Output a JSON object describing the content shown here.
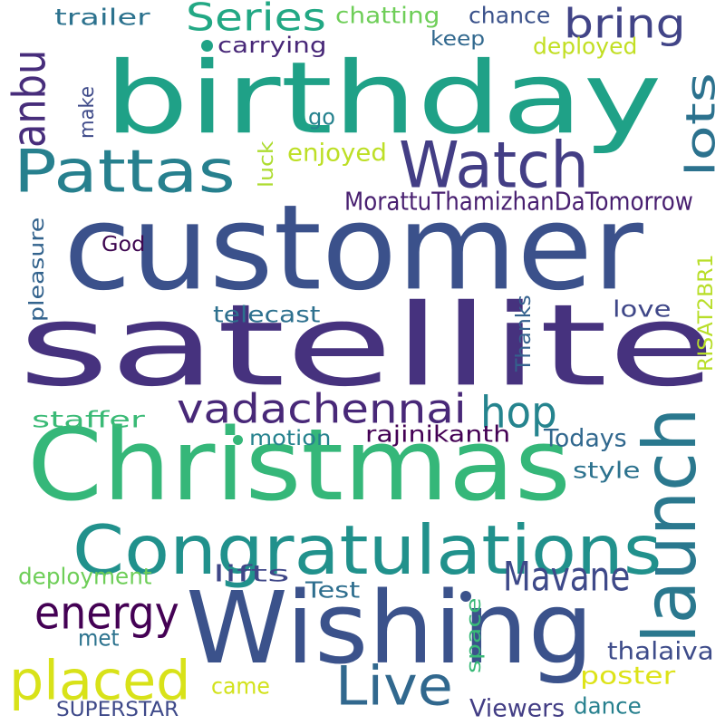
{
  "wordcloud": {
    "words": [
      {
        "text": "customer",
        "color": "#3b518b"
      },
      {
        "text": "birthday",
        "color": "#1fa187"
      },
      {
        "text": "satellite",
        "color": "#46327e"
      },
      {
        "text": "Christmas",
        "color": "#35b779"
      },
      {
        "text": "Wishing",
        "color": "#3b528b"
      },
      {
        "text": "Congratulations",
        "color": "#21918c"
      },
      {
        "text": "Pattas",
        "color": "#27808e"
      },
      {
        "text": "Watch",
        "color": "#433e85"
      },
      {
        "text": "launch",
        "color": "#2a788e"
      },
      {
        "text": "placed",
        "color": "#d8e219"
      },
      {
        "text": "Live",
        "color": "#31688e"
      },
      {
        "text": "Mavane",
        "color": "#3e4989"
      },
      {
        "text": "vadachennai",
        "color": "#482878"
      },
      {
        "text": "hop",
        "color": "#25848e"
      },
      {
        "text": "energy",
        "color": "#440154"
      },
      {
        "text": "Series",
        "color": "#22a884"
      },
      {
        "text": "bring",
        "color": "#414487"
      },
      {
        "text": "lots",
        "color": "#2c728e"
      },
      {
        "text": "anbu",
        "color": "#472d7b"
      },
      {
        "text": "MorattuThamizhanDaTomorrow",
        "color": "#481f70"
      },
      {
        "text": "trailer",
        "color": "#2c728e"
      },
      {
        "text": "chatting",
        "color": "#6ece58"
      },
      {
        "text": "chance",
        "color": "#3b528b"
      },
      {
        "text": "keep",
        "color": "#31688e"
      },
      {
        "text": "carrying",
        "color": "#482878"
      },
      {
        "text": "deployed",
        "color": "#c2df23"
      },
      {
        "text": "make",
        "color": "#3e4a89"
      },
      {
        "text": "go",
        "color": "#26828e"
      },
      {
        "text": "enjoyed",
        "color": "#bddf26"
      },
      {
        "text": "luck",
        "color": "#addc30"
      },
      {
        "text": "God",
        "color": "#3e0751"
      },
      {
        "text": "pleasure",
        "color": "#33638d"
      },
      {
        "text": "telecast",
        "color": "#2d708e"
      },
      {
        "text": "Thanks",
        "color": "#34618d"
      },
      {
        "text": "RISAT2BR1",
        "color": "#b8de29"
      },
      {
        "text": "love",
        "color": "#3f4788"
      },
      {
        "text": "staffer",
        "color": "#3aba76"
      },
      {
        "text": "motion",
        "color": "#26828e"
      },
      {
        "text": "rajinikanth",
        "color": "#440154"
      },
      {
        "text": "Todays",
        "color": "#31688e"
      },
      {
        "text": "style",
        "color": "#2c728e"
      },
      {
        "text": "deployment",
        "color": "#6ece58"
      },
      {
        "text": "lifts",
        "color": "#3f4788"
      },
      {
        "text": "Test",
        "color": "#2e6e8e"
      },
      {
        "text": "met",
        "color": "#2c738e"
      },
      {
        "text": "space",
        "color": "#38b977"
      },
      {
        "text": "thalaiva",
        "color": "#3e4c8a"
      },
      {
        "text": "poster",
        "color": "#dde318"
      },
      {
        "text": "came",
        "color": "#d2e21b"
      },
      {
        "text": "SUPERSTAR",
        "color": "#3e4989"
      },
      {
        "text": "Viewers",
        "color": "#433e85"
      },
      {
        "text": "dance",
        "color": "#27808e"
      }
    ],
    "dots": [
      {
        "color": "#20a386"
      },
      {
        "color": "#35b779"
      },
      {
        "color": "#3b528b"
      }
    ]
  }
}
